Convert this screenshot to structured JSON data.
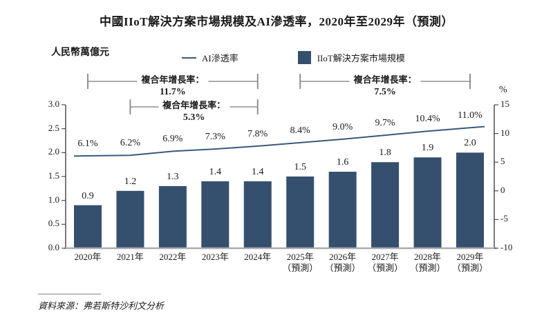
{
  "title": "中國IIoT解決方案市場規模及AI滲透率，2020年至2029年（預測）",
  "left_axis_unit": "人民幣萬億元",
  "right_axis_unit": "%",
  "legend": {
    "line_label": "AI滲透率",
    "bar_label": "IIoT解決方案市場規模"
  },
  "source_note": "資料來源：弗若斯特沙利文分析",
  "colors": {
    "bar": "#35506E",
    "line": "#3A587C",
    "axis": "#4D4D4D",
    "baseline": "#ABABAB",
    "bracket": "#8F8F8F",
    "text": "#1A1A1A"
  },
  "chart_data": {
    "type": "combo",
    "title": "中國IIoT解決方案市場規模及AI滲透率，2020年至2029年（預測）",
    "categories": [
      {
        "label": "2020年",
        "sublabel": ""
      },
      {
        "label": "2021年",
        "sublabel": ""
      },
      {
        "label": "2022年",
        "sublabel": ""
      },
      {
        "label": "2023年",
        "sublabel": ""
      },
      {
        "label": "2024年",
        "sublabel": ""
      },
      {
        "label": "2025年",
        "sublabel": "（預測）"
      },
      {
        "label": "2026年",
        "sublabel": "（預測）"
      },
      {
        "label": "2027年",
        "sublabel": "（預測）"
      },
      {
        "label": "2028年",
        "sublabel": "（預測）"
      },
      {
        "label": "2029年",
        "sublabel": "（預測）"
      }
    ],
    "series": [
      {
        "name": "IIoT解決方案市場規模",
        "type": "bar",
        "axis": "left",
        "unit": "人民幣萬億元",
        "values": [
          0.9,
          1.2,
          1.3,
          1.4,
          1.4,
          1.5,
          1.6,
          1.8,
          1.9,
          2.0
        ],
        "labels": [
          "0.9",
          "1.2",
          "1.3",
          "1.4",
          "1.4",
          "1.5",
          "1.6",
          "1.8",
          "1.9",
          "2.0"
        ]
      },
      {
        "name": "AI滲透率",
        "type": "line",
        "axis": "right",
        "unit": "%",
        "values": [
          6.1,
          6.2,
          6.9,
          7.3,
          7.8,
          8.4,
          9.0,
          9.7,
          10.4,
          11.0
        ],
        "labels": [
          "6.1%",
          "6.2%",
          "6.9%",
          "7.3%",
          "7.8%",
          "8.4%",
          "9.0%",
          "9.7%",
          "10.4%",
          "11.0%"
        ]
      }
    ],
    "left_axis": {
      "min": 0,
      "max": 3,
      "step": 0.5,
      "ticks": [
        "3.0",
        "2.5",
        "2.0",
        "1.5",
        "1.0",
        "0.5",
        "0.0"
      ]
    },
    "right_axis": {
      "min": -10,
      "max": 15,
      "step": 5,
      "ticks": [
        "15",
        "10",
        "5",
        "0",
        "-5",
        "-10"
      ]
    },
    "grid": false,
    "legend_position": "top",
    "annotations": [
      {
        "label": "複合年增長率：",
        "value": "11.7%",
        "from_index": 0,
        "to_index": 4,
        "row": "top"
      },
      {
        "label": "複合年增長率：",
        "value": "5.3%",
        "from_index": 1,
        "to_index": 4,
        "row": "bottom"
      },
      {
        "label": "複合年增長率：",
        "value": "7.5%",
        "from_index": 5,
        "to_index": 9,
        "row": "top"
      }
    ]
  }
}
